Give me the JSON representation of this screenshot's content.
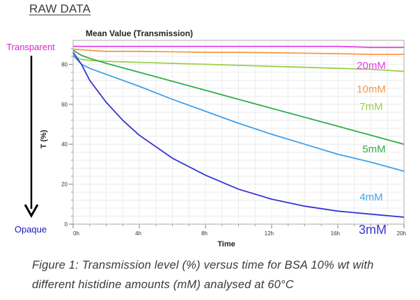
{
  "heading": "RAW DATA",
  "caption": "Figure 1: Transmission level (%) versus time for BSA 10% wt with different histidine amounts (mM) analysed at 60°C",
  "chart_data": {
    "type": "line",
    "title": "Mean Value (Transmission)",
    "xlabel": "Time",
    "ylabel": "T (%)",
    "x_unit": "h",
    "xlim": [
      0,
      20
    ],
    "ylim": [
      0,
      92
    ],
    "x_ticks": [
      0,
      4,
      8,
      12,
      16,
      20
    ],
    "x_tick_labels": [
      "0h",
      "4h",
      "8h",
      "12h",
      "16h",
      "20h"
    ],
    "y_ticks": [
      0,
      20,
      40,
      60,
      80
    ],
    "y_tick_labels": [
      "0",
      "20",
      "40",
      "60",
      "80"
    ],
    "grid": true,
    "annotations": {
      "top": "Transparent",
      "bottom": "Opaque"
    },
    "series": [
      {
        "name": "20mM",
        "color": "#e040e8",
        "x": [
          0,
          1,
          2,
          4,
          6,
          8,
          10,
          12,
          14,
          16,
          18,
          20
        ],
        "y": [
          89,
          89,
          89,
          89,
          89,
          89,
          89,
          89,
          89,
          89,
          88.5,
          88.5
        ]
      },
      {
        "name": "10mM",
        "color": "#f59a4a",
        "x": [
          0,
          1,
          2,
          4,
          6,
          8,
          10,
          12,
          14,
          16,
          18,
          20
        ],
        "y": [
          87.5,
          87,
          86.5,
          86.5,
          86.3,
          86,
          86,
          85.8,
          85.6,
          85.3,
          85,
          85
        ]
      },
      {
        "name": "7mM",
        "color": "#9ad048",
        "x": [
          0,
          0.5,
          1,
          2,
          4,
          6,
          8,
          10,
          12,
          14,
          16,
          18,
          20
        ],
        "y": [
          84,
          82.5,
          82,
          81.5,
          81,
          80.5,
          80,
          79.5,
          79,
          78.5,
          78,
          77.5,
          76.5
        ]
      },
      {
        "name": "5mM",
        "color": "#2fae4a",
        "x": [
          0,
          0.5,
          1,
          2,
          4,
          6,
          8,
          10,
          12,
          14,
          16,
          18,
          20
        ],
        "y": [
          87,
          84.5,
          83,
          80.5,
          76,
          71.5,
          67,
          62.5,
          58,
          53.5,
          49,
          44.5,
          40
        ]
      },
      {
        "name": "4mM",
        "color": "#3fa0e8",
        "x": [
          0,
          0.5,
          1,
          2,
          4,
          6,
          8,
          10,
          12,
          14,
          16,
          18,
          20
        ],
        "y": [
          84.5,
          80,
          78,
          75,
          69,
          62.5,
          56.5,
          50.5,
          45,
          40,
          35,
          31,
          26.5
        ]
      },
      {
        "name": "3mM",
        "color": "#3434d4",
        "x": [
          0,
          0.5,
          1,
          2,
          3,
          4,
          6,
          8,
          10,
          12,
          14,
          16,
          18,
          20
        ],
        "y": [
          86,
          80,
          72,
          61,
          52,
          44.5,
          33,
          24.5,
          17.5,
          12.5,
          9,
          6.5,
          5,
          3.5
        ]
      }
    ],
    "labels_order": [
      "20mM",
      "10mM",
      "7mM",
      "5mM",
      "4mM",
      "3mM"
    ]
  }
}
